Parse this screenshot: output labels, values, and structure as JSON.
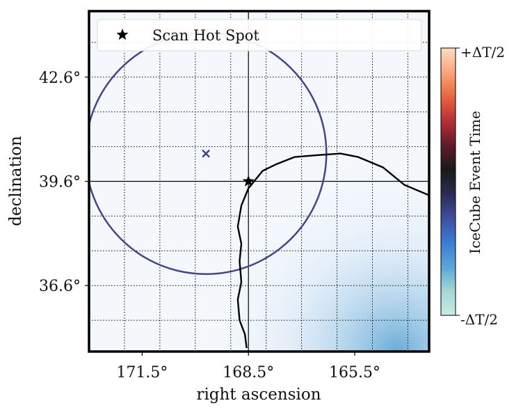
{
  "chart_data": {
    "type": "heatmap",
    "title": "",
    "xlabel": "right ascension",
    "ylabel": "declination",
    "xlim": [
      173.0,
      163.4
    ],
    "ylim": [
      34.7,
      44.5
    ],
    "x_ticks": [
      {
        "value": 171.5,
        "label": "171.5°"
      },
      {
        "value": 168.5,
        "label": "168.5°"
      },
      {
        "value": 165.5,
        "label": "165.5°"
      }
    ],
    "y_ticks": [
      {
        "value": 42.6,
        "label": "42.6°"
      },
      {
        "value": 39.6,
        "label": "39.6°"
      },
      {
        "value": 36.6,
        "label": "36.6°"
      }
    ],
    "minor_grid_ra": [
      172.0,
      171.0,
      170.0,
      169.0,
      168.0,
      167.0,
      166.0,
      165.0,
      164.0
    ],
    "minor_grid_dec": [
      35.6,
      36.6,
      37.6,
      38.6,
      39.6,
      40.6,
      41.6,
      42.6,
      43.6
    ],
    "grid": true,
    "legend": {
      "position": "top",
      "entries": [
        {
          "marker": "star",
          "label": "Scan Hot Spot"
        }
      ]
    },
    "hot_spot": {
      "ra": 168.5,
      "dec": 39.6
    },
    "crosshair": {
      "ra": 168.5,
      "dec": 39.6
    },
    "event": {
      "ra": 169.7,
      "dec": 40.4,
      "radius_deg": 3.4,
      "color": "#434587"
    },
    "contour": [
      [
        168.55,
        34.8
      ],
      [
        168.6,
        35.2
      ],
      [
        168.75,
        35.6
      ],
      [
        168.8,
        36.2
      ],
      [
        168.7,
        36.7
      ],
      [
        168.75,
        37.3
      ],
      [
        168.7,
        37.8
      ],
      [
        168.8,
        38.3
      ],
      [
        168.7,
        38.9
      ],
      [
        168.5,
        39.4
      ],
      [
        168.1,
        39.9
      ],
      [
        167.7,
        40.1
      ],
      [
        167.2,
        40.3
      ],
      [
        166.6,
        40.35
      ],
      [
        165.9,
        40.4
      ],
      [
        165.4,
        40.3
      ],
      [
        164.7,
        40.0
      ],
      [
        164.1,
        39.5
      ],
      [
        163.4,
        39.2
      ]
    ],
    "colorbar": {
      "label": "IceCube Event Time",
      "top_label": "+ΔT/2",
      "bottom_label": "-ΔT/2",
      "colors": [
        "#fdddc4",
        "#f7a67a",
        "#e8663e",
        "#b52f37",
        "#5e1a2c",
        "#1a1a1a",
        "#2a2b52",
        "#3e4f9e",
        "#3c7bd4",
        "#59a5d9",
        "#a6d7d2",
        "#c9eae3"
      ]
    },
    "background_color": "#f4f8fd",
    "density_color": "#62a8d6"
  }
}
